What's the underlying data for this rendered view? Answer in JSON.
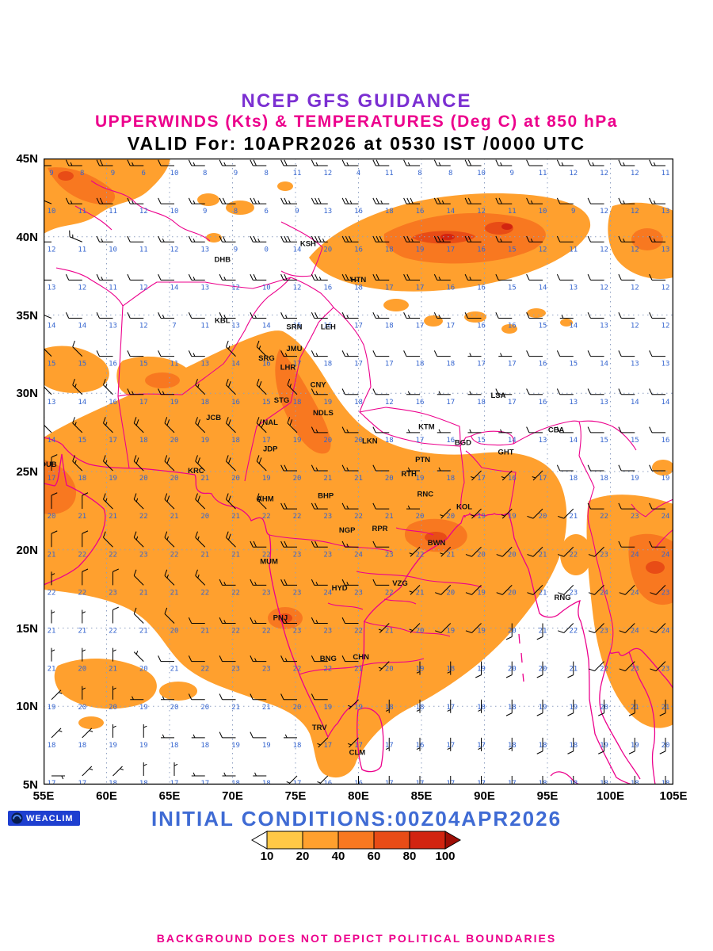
{
  "title": {
    "line1": "NCEP GFS GUIDANCE",
    "line2": "UPPERWINDS (Kts) & TEMPERATURES (Deg C) at 850 hPa",
    "line3": "VALID For: 10APR2026 at 0530 IST /0000 UTC"
  },
  "colors": {
    "title1": "#7B2FD2",
    "magenta": "#EC008C",
    "temp_text": "#3565CF",
    "initial_text": "#3F6BD4",
    "grid": "#8FA0C2",
    "barb": "#000000",
    "logo_bg": "#1E3FD0",
    "station_text": "#111111"
  },
  "logo": {
    "text": "WEACLIM"
  },
  "initial_conditions": "INITIAL CONDITIONS:00Z04APR2026",
  "footer": "BACKGROUND DOES NOT DEPICT POLITICAL BOUNDARIES",
  "axes": {
    "lat_labels": [
      "45N",
      "40N",
      "35N",
      "30N",
      "25N",
      "20N",
      "15N",
      "10N",
      "5N"
    ],
    "lon_labels": [
      "55E",
      "60E",
      "65E",
      "70E",
      "75E",
      "80E",
      "85E",
      "90E",
      "95E",
      "100E",
      "105E"
    ],
    "lat_range": [
      5,
      45
    ],
    "lon_range": [
      55,
      105
    ]
  },
  "scalebar": {
    "labels": [
      "10",
      "20",
      "40",
      "60",
      "80",
      "100"
    ],
    "colors": [
      "#FFC846",
      "#FFA02E",
      "#F87820",
      "#E84C16",
      "#D22410",
      "#9E0E06"
    ]
  },
  "stations": [
    {
      "code": "DHB",
      "lon": 69.2,
      "lat": 38.4
    },
    {
      "code": "KSH",
      "lon": 76.0,
      "lat": 39.4
    },
    {
      "code": "HTN",
      "lon": 80.0,
      "lat": 37.1
    },
    {
      "code": "KBL",
      "lon": 69.2,
      "lat": 34.5
    },
    {
      "code": "SRN",
      "lon": 74.9,
      "lat": 34.1
    },
    {
      "code": "LEH",
      "lon": 77.6,
      "lat": 34.1
    },
    {
      "code": "JMU",
      "lon": 74.9,
      "lat": 32.7
    },
    {
      "code": "SRG",
      "lon": 72.7,
      "lat": 32.1
    },
    {
      "code": "LHR",
      "lon": 74.4,
      "lat": 31.5
    },
    {
      "code": "CNY",
      "lon": 76.8,
      "lat": 30.4
    },
    {
      "code": "STG",
      "lon": 73.9,
      "lat": 29.4
    },
    {
      "code": "NDLS",
      "lon": 77.2,
      "lat": 28.6
    },
    {
      "code": "LSA",
      "lon": 91.1,
      "lat": 29.7
    },
    {
      "code": "JCB",
      "lon": 68.5,
      "lat": 28.3
    },
    {
      "code": "NAL",
      "lon": 73.0,
      "lat": 28.0
    },
    {
      "code": "KTM",
      "lon": 85.4,
      "lat": 27.7
    },
    {
      "code": "BGD",
      "lon": 88.3,
      "lat": 26.7
    },
    {
      "code": "CBA",
      "lon": 95.7,
      "lat": 27.5
    },
    {
      "code": "GHT",
      "lon": 91.7,
      "lat": 26.1
    },
    {
      "code": "JDP",
      "lon": 73.0,
      "lat": 26.3
    },
    {
      "code": "LKN",
      "lon": 80.9,
      "lat": 26.8
    },
    {
      "code": "PTN",
      "lon": 85.1,
      "lat": 25.6
    },
    {
      "code": "DUB",
      "lon": 55.4,
      "lat": 25.3
    },
    {
      "code": "KRC",
      "lon": 67.1,
      "lat": 24.9
    },
    {
      "code": "RTH",
      "lon": 84.0,
      "lat": 24.7
    },
    {
      "code": "RNC",
      "lon": 85.3,
      "lat": 23.4
    },
    {
      "code": "AHM",
      "lon": 72.6,
      "lat": 23.1
    },
    {
      "code": "BHP",
      "lon": 77.4,
      "lat": 23.3
    },
    {
      "code": "KOL",
      "lon": 88.4,
      "lat": 22.6
    },
    {
      "code": "NGP",
      "lon": 79.1,
      "lat": 21.1
    },
    {
      "code": "RPR",
      "lon": 81.7,
      "lat": 21.2
    },
    {
      "code": "BWN",
      "lon": 86.2,
      "lat": 20.3
    },
    {
      "code": "MUM",
      "lon": 72.9,
      "lat": 19.1
    },
    {
      "code": "HYD",
      "lon": 78.5,
      "lat": 17.4
    },
    {
      "code": "VZG",
      "lon": 83.3,
      "lat": 17.7
    },
    {
      "code": "PNJ",
      "lon": 73.8,
      "lat": 15.5
    },
    {
      "code": "RNG",
      "lon": 96.2,
      "lat": 16.8
    },
    {
      "code": "CHN",
      "lon": 80.2,
      "lat": 13.0
    },
    {
      "code": "BNG",
      "lon": 77.6,
      "lat": 12.9
    },
    {
      "code": "TRV",
      "lon": 76.9,
      "lat": 8.5
    },
    {
      "code": "CLM",
      "lon": 79.9,
      "lat": 6.9
    }
  ],
  "chart_data": {
    "type": "weather-map",
    "level_hpa": 850,
    "valid": "10APR2026 0530 IST / 0000 UTC",
    "lat_grid": {
      "start": 45,
      "end": 5,
      "step": -2.5
    },
    "lon_grid": {
      "start": 55,
      "end": 105,
      "step": 2.5
    },
    "shading_legend_kts": [
      10,
      20,
      40,
      60,
      80,
      100
    ],
    "temperature_degC_rows": [
      [
        9,
        8,
        9,
        6,
        10,
        8,
        9,
        8,
        11,
        12,
        4,
        11,
        8,
        8,
        10,
        9,
        11,
        12,
        12,
        12,
        11
      ],
      [
        10,
        11,
        11,
        12,
        10,
        9,
        8,
        6,
        9,
        13,
        16,
        18,
        16,
        14,
        12,
        11,
        10,
        9,
        12,
        12,
        13
      ],
      [
        12,
        11,
        10,
        11,
        12,
        13,
        9,
        0,
        14,
        20,
        16,
        18,
        19,
        17,
        16,
        15,
        12,
        11,
        12,
        12,
        13
      ],
      [
        13,
        12,
        11,
        12,
        14,
        13,
        12,
        10,
        12,
        16,
        18,
        17,
        17,
        16,
        16,
        15,
        14,
        13,
        12,
        12,
        12
      ],
      [
        14,
        14,
        13,
        12,
        7,
        11,
        13,
        14,
        15,
        16,
        17,
        18,
        17,
        17,
        16,
        16,
        15,
        14,
        13,
        12,
        12
      ],
      [
        15,
        15,
        16,
        15,
        11,
        13,
        14,
        16,
        17,
        18,
        17,
        17,
        18,
        18,
        17,
        17,
        16,
        15,
        14,
        13,
        13
      ],
      [
        13,
        14,
        16,
        17,
        19,
        18,
        16,
        15,
        18,
        19,
        18,
        12,
        16,
        17,
        18,
        17,
        16,
        13,
        13,
        14,
        14
      ],
      [
        14,
        15,
        17,
        18,
        20,
        19,
        18,
        17,
        19,
        20,
        20,
        18,
        17,
        16,
        15,
        14,
        13,
        14,
        15,
        15,
        16
      ],
      [
        17,
        18,
        19,
        20,
        20,
        21,
        20,
        19,
        20,
        21,
        21,
        20,
        19,
        18,
        17,
        16,
        17,
        18,
        18,
        19,
        19
      ],
      [
        20,
        21,
        21,
        22,
        21,
        20,
        21,
        22,
        22,
        23,
        22,
        21,
        20,
        20,
        19,
        19,
        20,
        21,
        22,
        23,
        24
      ],
      [
        21,
        22,
        22,
        23,
        22,
        21,
        21,
        22,
        23,
        23,
        24,
        23,
        22,
        21,
        20,
        20,
        21,
        22,
        23,
        24,
        24
      ],
      [
        22,
        22,
        23,
        21,
        21,
        22,
        22,
        23,
        23,
        24,
        23,
        22,
        21,
        20,
        19,
        20,
        21,
        23,
        24,
        24,
        23
      ],
      [
        21,
        21,
        22,
        21,
        20,
        21,
        22,
        22,
        23,
        23,
        22,
        21,
        20,
        19,
        19,
        20,
        21,
        22,
        23,
        24,
        24
      ],
      [
        21,
        20,
        21,
        20,
        21,
        22,
        23,
        23,
        22,
        22,
        21,
        20,
        19,
        18,
        19,
        20,
        20,
        21,
        22,
        23,
        23
      ],
      [
        19,
        20,
        20,
        19,
        20,
        20,
        21,
        21,
        20,
        19,
        19,
        18,
        18,
        17,
        18,
        18,
        19,
        19,
        20,
        21,
        21
      ],
      [
        18,
        18,
        19,
        19,
        18,
        18,
        19,
        19,
        18,
        17,
        17,
        17,
        16,
        17,
        17,
        18,
        18,
        18,
        19,
        19,
        20
      ],
      [
        17,
        17,
        18,
        18,
        17,
        17,
        18,
        18,
        17,
        16,
        16,
        17,
        17,
        17,
        17,
        17,
        18,
        18,
        18,
        18,
        18
      ]
    ],
    "wind_kts_rows": [
      "W15 W15 W20 W15 W10 W15 W15 W20 W20 W15 W15 W20 W15 W15 W20 W15 W10 W15 W15 W15 W15",
      "WNW15 W15 W20 W15 W10 W15 W20 W25 W25 W30 W25 W25 W30 W25 W20 W20 W15 W10 W10 W15 W15",
      "W15 WNW15 W15 W10 W15 W15 W20 W25 W30 W35 W30 W30 W25 W25 W20 W15 W15 W10 W10 W15 W15",
      "W10 W10 W15 W10 W10 W15 W15 W20 W20 W25 W25 W20 W20 W15 W15 W10 W10 W10 W10 W10 W10",
      "WNW10 W10 W10 W10 W15 W10 W15 W15 W15 W20 W15 W15 W15 W15 W10 W10 W10 W5 W10 W10 W10",
      "NW10 NW10 W10 W10 W10 W15 NW15 NW15 W15 W15 W15 W10 W10 W10 W5 W5 W10 W10 W10 W10 W10",
      "NW10 NW15 NW15 W15 W15 NW15 NW20 NW20 NW15 W15 W10 W10 W5 W5 W5 W10 W10 W10 W10 W10 W10",
      "NW10 NW15 NW15 NW20 NW20 NW20 NW20 NW25 NW20 W15 W15 W10 W5 W5 W5 W5 W10 W10 W10 W10 W10",
      "N10 NW15 NW15 NW20 NW20 NW20 NW20 NW20 W20 W15 W15 W10 W5 W5 SW5 SW5 SW5 W10 W10 W10 W10",
      "N10 N10 NW15 NW15 NW20 NW20 NW20 NW20 W20 W20 W15 W10 W5 SW5 SW5 SW5 SW10 SW10 W10 W10 W10",
      "N10 N10 NW10 NW15 NW15 NW15 NW20 W20 W20 W20 W15 W10 SW5 SW5 SW10 SW10 SW10 SW10 SW10 W10 W10",
      "N5 N10 N10 NW10 NW15 NW15 W15 W15 W20 W15 W15 W10 SW5 SW10 SW10 SW10 SW10 SW10 SW10 SW10 SW10",
      "N5 N5 N10 NW10 NW10 W10 W15 W15 W15 W15 W10 SW5 SW5 SW10 SW10 S10 S10 SW10 SW10 SW10 SW10",
      "N5 N5 N5 NW5 W10 W10 W10 W15 W15 W10 W10 SW5 S5 S5 S10 S10 S10 S10 SW10 SW10 SW10",
      "NE5 N5 N5 W5 W5 W10 W10 W10 W10 W10 SW5 S5 S5 S5 S5 S10 S10 S10 S10 S10 S10",
      "NE5 NE5 N5 N5 W5 W5 W10 W10 W5 SW5 SW5 S5 S5 S5 S5 S5 S10 S10 S10 S10 S10",
      "E5 NE5 NE5 N5 N5 W5 W5 W5 SW5 SW5 S5 S5 S5 S5 S5 S5 S5 S10 S10 S10 S10"
    ]
  }
}
